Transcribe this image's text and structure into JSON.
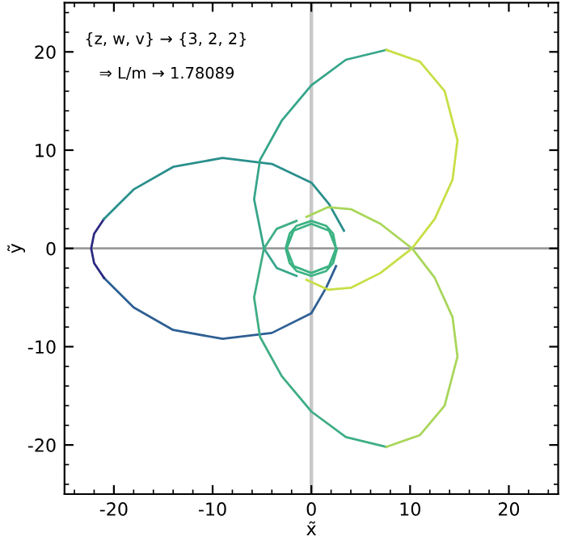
{
  "chart_data": {
    "type": "line",
    "xlabel": "x̃",
    "ylabel": "ỹ",
    "xlim": [
      -25,
      25
    ],
    "ylim": [
      -25,
      25
    ],
    "xticks": [
      -20,
      -10,
      0,
      10,
      20
    ],
    "yticks": [
      -20,
      -10,
      0,
      10,
      20
    ],
    "grid": false,
    "legend": false,
    "marker": "none",
    "line_style": "solid",
    "annotations": [
      "{z, w, v} → {3, 2, 2}",
      "⇒ L/m → 1.78089"
    ],
    "ref_lines": [
      {
        "axis": "x",
        "value": 0,
        "color": "#c8c8c8"
      },
      {
        "axis": "y",
        "value": 0,
        "color": "#9a9a9a"
      }
    ],
    "series": [
      {
        "color": "#2f5f94",
        "x": [
          2.5,
          1.5,
          0,
          -4,
          -9,
          -14,
          -18,
          -21
        ],
        "values": [
          -1.8,
          -4,
          -6.6,
          -8.6,
          -9.2,
          -8.3,
          -6,
          -3
        ]
      },
      {
        "color": "#2b2a80",
        "x": [
          -21,
          -22,
          -22.3,
          -22,
          -21
        ],
        "values": [
          -3,
          -1.5,
          0,
          1.5,
          3
        ]
      },
      {
        "color": "#2a8f8c",
        "x": [
          -21,
          -18,
          -14,
          -9,
          -4,
          0,
          1.8,
          3.3
        ],
        "values": [
          3,
          6,
          8.3,
          9.2,
          8.6,
          6.7,
          4.5,
          1.8
        ]
      },
      {
        "color": "#3cb383",
        "x": [
          2.5,
          1.8,
          0,
          -1.8,
          -2.5,
          -1.8,
          0,
          1.8,
          2.5,
          2.2,
          1.5,
          0,
          -1.5,
          -2.2,
          -2.6,
          -2.2,
          -1.5,
          0,
          1.5,
          2.2,
          2.6
        ],
        "values": [
          0,
          1.8,
          2.5,
          1.8,
          0,
          -1.8,
          -2.5,
          -1.8,
          0,
          1.5,
          2.3,
          2.8,
          2.3,
          1.5,
          0,
          -1.5,
          -2.3,
          -2.8,
          -2.3,
          -1.5,
          0
        ]
      },
      {
        "color": "#36a58a",
        "x": [
          -1.5,
          -3.5,
          -4.8,
          -5.8,
          -5.2,
          -3,
          0,
          3.5,
          7.6
        ],
        "values": [
          -2.8,
          -2,
          0,
          5,
          9,
          13,
          16.6,
          19.2,
          20.2
        ]
      },
      {
        "color": "#c8de45",
        "x": [
          7.6,
          11,
          13.5,
          14.8,
          14.3,
          12.5,
          10.2,
          7,
          4,
          1.7,
          -0.5
        ],
        "values": [
          20.2,
          19,
          16,
          11,
          7,
          3,
          0,
          -2.5,
          -4,
          -4.2,
          -3.2
        ]
      },
      {
        "color": "#3fae85",
        "x": [
          -1.5,
          -3.5,
          -4.8,
          -5.8,
          -5.2,
          -3,
          0,
          3.5,
          7.6
        ],
        "values": [
          2.8,
          2,
          0,
          -5,
          -9,
          -13,
          -16.6,
          -19.2,
          -20.2
        ]
      },
      {
        "color": "#a8d65a",
        "x": [
          7.6,
          11,
          13.5,
          14.8,
          14.3,
          12.5,
          10.2,
          7,
          4,
          1.7,
          -0.5
        ],
        "values": [
          -20.2,
          -19,
          -16,
          -11,
          -7,
          -3,
          0,
          2.5,
          4,
          4.2,
          3.2
        ]
      }
    ]
  }
}
